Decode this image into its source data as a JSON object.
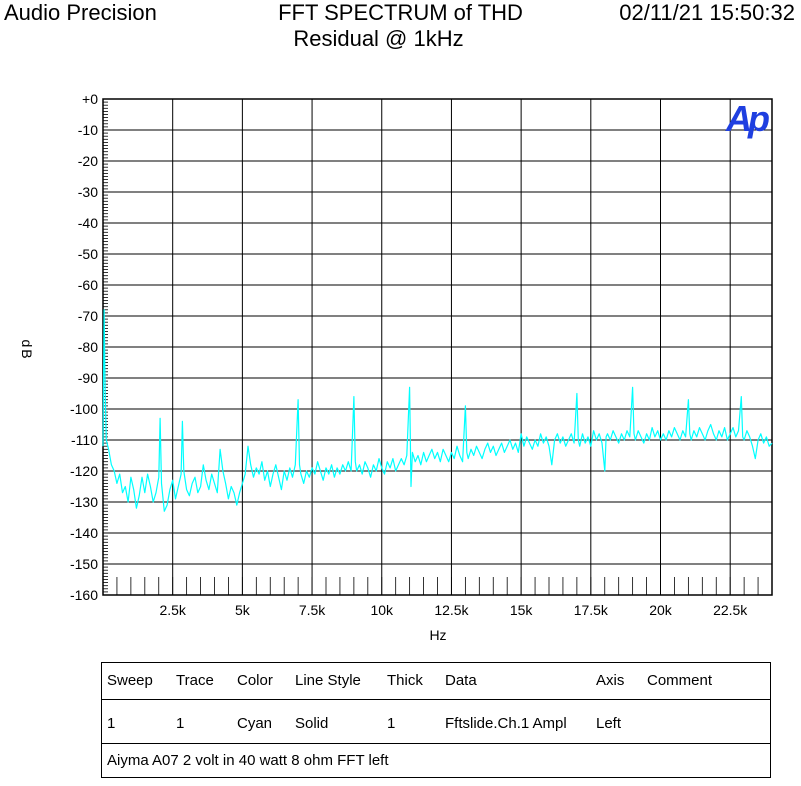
{
  "header": {
    "brand": "Audio Precision",
    "title_line1": "FFT SPECTRUM of THD",
    "title_line2": "Residual @ 1kHz",
    "timestamp": "02/11/21 15:50:32",
    "logo_text": "Ap"
  },
  "chart_data": {
    "type": "line",
    "title": "FFT SPECTRUM of THD Residual @ 1kHz",
    "xlabel": "Hz",
    "ylabel": "dB",
    "xlim": [
      0,
      24000
    ],
    "ylim": [
      -160,
      0
    ],
    "x_ticks": [
      {
        "value": 2500,
        "label": "2.5k"
      },
      {
        "value": 5000,
        "label": "5k"
      },
      {
        "value": 7500,
        "label": "7.5k"
      },
      {
        "value": 10000,
        "label": "10k"
      },
      {
        "value": 12500,
        "label": "12.5k"
      },
      {
        "value": 15000,
        "label": "15k"
      },
      {
        "value": 17500,
        "label": "17.5k"
      },
      {
        "value": 20000,
        "label": "20k"
      },
      {
        "value": 22500,
        "label": "22.5k"
      }
    ],
    "y_ticks": [
      {
        "value": 0,
        "label": "+0"
      },
      {
        "value": -10,
        "label": "-10"
      },
      {
        "value": -20,
        "label": "-20"
      },
      {
        "value": -30,
        "label": "-30"
      },
      {
        "value": -40,
        "label": "-40"
      },
      {
        "value": -50,
        "label": "-50"
      },
      {
        "value": -60,
        "label": "-60"
      },
      {
        "value": -70,
        "label": "-70"
      },
      {
        "value": -80,
        "label": "-80"
      },
      {
        "value": -90,
        "label": "-90"
      },
      {
        "value": -100,
        "label": "-100"
      },
      {
        "value": -110,
        "label": "-110"
      },
      {
        "value": -120,
        "label": "-120"
      },
      {
        "value": -130,
        "label": "-130"
      },
      {
        "value": -140,
        "label": "-140"
      },
      {
        "value": -150,
        "label": "-150"
      },
      {
        "value": -160,
        "label": "-160"
      }
    ],
    "grid": true,
    "series": [
      {
        "color": "#00ffff",
        "points": [
          [
            0,
            -112
          ],
          [
            40,
            -68
          ],
          [
            80,
            -95
          ],
          [
            120,
            -110
          ],
          [
            200,
            -113
          ],
          [
            300,
            -118
          ],
          [
            400,
            -120
          ],
          [
            500,
            -124
          ],
          [
            600,
            -121
          ],
          [
            700,
            -127
          ],
          [
            800,
            -125
          ],
          [
            900,
            -130
          ],
          [
            1000,
            -122
          ],
          [
            1100,
            -126
          ],
          [
            1200,
            -132
          ],
          [
            1300,
            -128
          ],
          [
            1400,
            -122
          ],
          [
            1500,
            -127
          ],
          [
            1600,
            -121
          ],
          [
            1700,
            -125
          ],
          [
            1800,
            -130
          ],
          [
            1900,
            -127
          ],
          [
            2000,
            -122
          ],
          [
            2050,
            -103
          ],
          [
            2100,
            -124
          ],
          [
            2200,
            -133
          ],
          [
            2300,
            -131
          ],
          [
            2400,
            -126
          ],
          [
            2500,
            -123
          ],
          [
            2600,
            -129
          ],
          [
            2700,
            -125
          ],
          [
            2800,
            -121
          ],
          [
            2850,
            -104
          ],
          [
            2900,
            -120
          ],
          [
            3000,
            -126
          ],
          [
            3100,
            -128
          ],
          [
            3200,
            -124
          ],
          [
            3300,
            -122
          ],
          [
            3400,
            -127
          ],
          [
            3500,
            -125
          ],
          [
            3600,
            -118
          ],
          [
            3700,
            -123
          ],
          [
            3800,
            -126
          ],
          [
            3900,
            -121
          ],
          [
            4000,
            -124
          ],
          [
            4100,
            -127
          ],
          [
            4200,
            -113
          ],
          [
            4300,
            -120
          ],
          [
            4400,
            -124
          ],
          [
            4500,
            -129
          ],
          [
            4600,
            -125
          ],
          [
            4700,
            -127
          ],
          [
            4800,
            -131
          ],
          [
            4900,
            -127
          ],
          [
            5000,
            -124
          ],
          [
            5100,
            -121
          ],
          [
            5200,
            -112
          ],
          [
            5300,
            -118
          ],
          [
            5400,
            -122
          ],
          [
            5500,
            -119
          ],
          [
            5600,
            -121
          ],
          [
            5700,
            -117
          ],
          [
            5800,
            -123
          ],
          [
            5900,
            -120
          ],
          [
            6000,
            -125
          ],
          [
            6100,
            -121
          ],
          [
            6200,
            -118
          ],
          [
            6300,
            -122
          ],
          [
            6400,
            -126
          ],
          [
            6500,
            -120
          ],
          [
            6600,
            -123
          ],
          [
            6700,
            -119
          ],
          [
            6800,
            -122
          ],
          [
            6900,
            -118
          ],
          [
            7000,
            -97
          ],
          [
            7050,
            -118
          ],
          [
            7100,
            -121
          ],
          [
            7200,
            -124
          ],
          [
            7300,
            -120
          ],
          [
            7400,
            -122
          ],
          [
            7500,
            -119
          ],
          [
            7600,
            -121
          ],
          [
            7700,
            -117
          ],
          [
            7800,
            -120
          ],
          [
            7900,
            -123
          ],
          [
            8000,
            -119
          ],
          [
            8100,
            -121
          ],
          [
            8200,
            -118
          ],
          [
            8300,
            -122
          ],
          [
            8400,
            -119
          ],
          [
            8500,
            -121
          ],
          [
            8600,
            -118
          ],
          [
            8700,
            -120
          ],
          [
            8800,
            -117
          ],
          [
            8900,
            -120
          ],
          [
            9000,
            -96
          ],
          [
            9050,
            -117
          ],
          [
            9100,
            -120
          ],
          [
            9200,
            -118
          ],
          [
            9300,
            -121
          ],
          [
            9400,
            -117
          ],
          [
            9500,
            -119
          ],
          [
            9600,
            -122
          ],
          [
            9700,
            -118
          ],
          [
            9800,
            -120
          ],
          [
            9900,
            -116
          ],
          [
            10000,
            -119
          ],
          [
            10100,
            -121
          ],
          [
            10200,
            -117
          ],
          [
            10300,
            -119
          ],
          [
            10400,
            -116
          ],
          [
            10500,
            -120
          ],
          [
            10600,
            -118
          ],
          [
            10700,
            -116
          ],
          [
            10800,
            -118
          ],
          [
            10900,
            -115
          ],
          [
            11000,
            -93
          ],
          [
            11050,
            -125
          ],
          [
            11100,
            -114
          ],
          [
            11200,
            -117
          ],
          [
            11300,
            -115
          ],
          [
            11400,
            -118
          ],
          [
            11500,
            -114
          ],
          [
            11600,
            -117
          ],
          [
            11700,
            -115
          ],
          [
            11800,
            -113
          ],
          [
            11900,
            -116
          ],
          [
            12000,
            -114
          ],
          [
            12100,
            -117
          ],
          [
            12200,
            -113
          ],
          [
            12300,
            -115
          ],
          [
            12400,
            -117
          ],
          [
            12500,
            -114
          ],
          [
            12600,
            -116
          ],
          [
            12700,
            -112
          ],
          [
            12800,
            -115
          ],
          [
            12900,
            -117
          ],
          [
            13000,
            -99
          ],
          [
            13050,
            -114
          ],
          [
            13100,
            -116
          ],
          [
            13200,
            -113
          ],
          [
            13300,
            -115
          ],
          [
            13400,
            -112
          ],
          [
            13500,
            -114
          ],
          [
            13600,
            -116
          ],
          [
            13700,
            -113
          ],
          [
            13800,
            -111
          ],
          [
            13900,
            -114
          ],
          [
            14000,
            -112
          ],
          [
            14100,
            -115
          ],
          [
            14200,
            -113
          ],
          [
            14300,
            -111
          ],
          [
            14400,
            -114
          ],
          [
            14500,
            -112
          ],
          [
            14600,
            -110
          ],
          [
            14700,
            -113
          ],
          [
            14800,
            -111
          ],
          [
            14900,
            -114
          ],
          [
            15000,
            -108
          ],
          [
            15100,
            -112
          ],
          [
            15200,
            -109
          ],
          [
            15300,
            -111
          ],
          [
            15400,
            -113
          ],
          [
            15500,
            -110
          ],
          [
            15600,
            -112
          ],
          [
            15700,
            -108
          ],
          [
            15800,
            -111
          ],
          [
            15900,
            -109
          ],
          [
            16000,
            -112
          ],
          [
            16100,
            -118
          ],
          [
            16200,
            -110
          ],
          [
            16300,
            -108
          ],
          [
            16400,
            -111
          ],
          [
            16500,
            -109
          ],
          [
            16600,
            -112
          ],
          [
            16700,
            -110
          ],
          [
            16800,
            -108
          ],
          [
            16900,
            -111
          ],
          [
            17000,
            -95
          ],
          [
            17050,
            -110
          ],
          [
            17100,
            -112
          ],
          [
            17200,
            -108
          ],
          [
            17300,
            -111
          ],
          [
            17400,
            -109
          ],
          [
            17500,
            -112
          ],
          [
            17600,
            -107
          ],
          [
            17700,
            -110
          ],
          [
            17800,
            -108
          ],
          [
            17900,
            -111
          ],
          [
            18000,
            -120
          ],
          [
            18050,
            -109
          ],
          [
            18100,
            -108
          ],
          [
            18200,
            -110
          ],
          [
            18300,
            -107
          ],
          [
            18400,
            -109
          ],
          [
            18500,
            -111
          ],
          [
            18600,
            -108
          ],
          [
            18700,
            -110
          ],
          [
            18800,
            -107
          ],
          [
            18900,
            -109
          ],
          [
            19000,
            -93
          ],
          [
            19050,
            -108
          ],
          [
            19100,
            -110
          ],
          [
            19200,
            -107
          ],
          [
            19300,
            -109
          ],
          [
            19400,
            -111
          ],
          [
            19500,
            -108
          ],
          [
            19600,
            -110
          ],
          [
            19700,
            -106
          ],
          [
            19800,
            -109
          ],
          [
            19900,
            -107
          ],
          [
            20000,
            -110
          ],
          [
            20100,
            -108
          ],
          [
            20200,
            -110
          ],
          [
            20300,
            -107
          ],
          [
            20400,
            -109
          ],
          [
            20500,
            -106
          ],
          [
            20600,
            -108
          ],
          [
            20700,
            -110
          ],
          [
            20800,
            -107
          ],
          [
            20900,
            -109
          ],
          [
            21000,
            -97
          ],
          [
            21050,
            -108
          ],
          [
            21100,
            -110
          ],
          [
            21200,
            -107
          ],
          [
            21300,
            -109
          ],
          [
            21400,
            -106
          ],
          [
            21500,
            -108
          ],
          [
            21600,
            -110
          ],
          [
            21700,
            -107
          ],
          [
            21800,
            -105
          ],
          [
            21900,
            -108
          ],
          [
            22000,
            -110
          ],
          [
            22100,
            -107
          ],
          [
            22200,
            -109
          ],
          [
            22300,
            -106
          ],
          [
            22400,
            -110
          ],
          [
            22500,
            -108
          ],
          [
            22600,
            -106
          ],
          [
            22700,
            -109
          ],
          [
            22800,
            -107
          ],
          [
            22900,
            -96
          ],
          [
            22950,
            -109
          ],
          [
            23000,
            -110
          ],
          [
            23100,
            -107
          ],
          [
            23200,
            -109
          ],
          [
            23300,
            -112
          ],
          [
            23400,
            -116
          ],
          [
            23500,
            -110
          ],
          [
            23600,
            -108
          ],
          [
            23700,
            -111
          ],
          [
            23800,
            -109
          ],
          [
            23900,
            -112
          ],
          [
            24000,
            -111
          ]
        ]
      }
    ]
  },
  "legend": {
    "headers": [
      "Sweep",
      "Trace",
      "Color",
      "Line Style",
      "Thick",
      "Data",
      "Axis",
      "Comment"
    ],
    "row": [
      "1",
      "1",
      "Cyan",
      "Solid",
      "1",
      "Fftslide.Ch.1 Ampl",
      "Left",
      ""
    ],
    "comment": "Aiyma A07 2 volt in 40 watt 8 ohm FFT left"
  }
}
